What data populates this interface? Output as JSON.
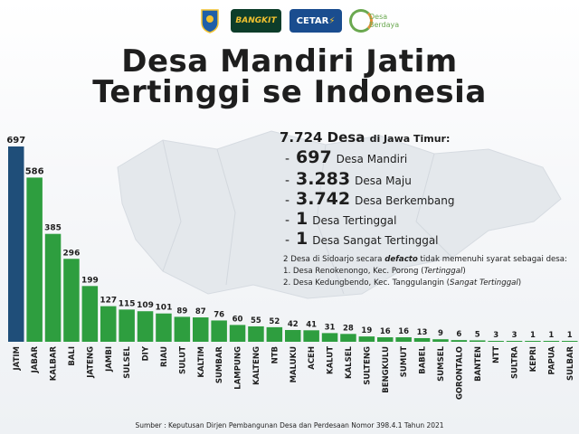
{
  "header": {
    "logos": [
      {
        "name": "jatim-crest-logo",
        "text": ""
      },
      {
        "name": "bangkit-logo",
        "text": "BANGKIT"
      },
      {
        "name": "cetar-logo",
        "text": "CETAR"
      },
      {
        "name": "desa-berdaya-logo",
        "text": "Desa Berdaya"
      }
    ],
    "title_line1": "Desa Mandiri Jatim",
    "title_line2": "Tertinggi se Indonesia"
  },
  "summary": {
    "total": "7.724 Desa",
    "total_suffix": "di Jawa Timur:",
    "items": [
      {
        "value": "697",
        "label": "Desa Mandiri"
      },
      {
        "value": "3.283",
        "label": "Desa Maju"
      },
      {
        "value": "3.742",
        "label": "Desa Berkembang"
      },
      {
        "value": "1",
        "label": "Desa Tertinggal"
      },
      {
        "value": "1",
        "label": "Desa Sangat Tertinggal"
      }
    ]
  },
  "note": {
    "intro_pre": "2 Desa di Sidoarjo secara ",
    "intro_bold": "defacto",
    "intro_post": " tidak memenuhi syarat sebagai desa:",
    "line1_pre": "1.  Desa Renokenongo, Kec. Porong (",
    "line1_em": "Tertinggal",
    "line1_post": ")",
    "line2_pre": "2.  Desa Kedungbendo, Kec. Tanggulangin (",
    "line2_em": "Sangat Tertinggal",
    "line2_post": ")"
  },
  "source": "Sumber : Keputusan Dirjen Pembangunan Desa dan Perdesaan Nomor 398.4.1 Tahun 2021",
  "colors": {
    "highlight_bar": "#1f4e79",
    "bar": "#2e9e3f",
    "bar_dark": "#23863a"
  },
  "chart_data": {
    "type": "bar",
    "title": "Desa Mandiri Jatim Tertinggi se Indonesia",
    "xlabel": "",
    "ylabel": "",
    "categories": [
      "JATIM",
      "JABAR",
      "KALBAR",
      "BALI",
      "JATENG",
      "JAMBI",
      "SULSEL",
      "DIY",
      "RIAU",
      "SULUT",
      "KALTIM",
      "SUMBAR",
      "LAMPUNG",
      "KALTENG",
      "NTB",
      "MALUKU",
      "ACEH",
      "KALUT",
      "KALSEL",
      "SULTENG",
      "BENGKULU",
      "SUMUT",
      "BABEL",
      "SUMSEL",
      "GORONTALO",
      "BANTEN",
      "NTT",
      "SULTRA",
      "KEPRI",
      "PAPUA",
      "SULBAR"
    ],
    "values": [
      697,
      586,
      385,
      296,
      199,
      127,
      115,
      109,
      101,
      89,
      87,
      76,
      60,
      55,
      52,
      42,
      41,
      31,
      28,
      19,
      16,
      16,
      13,
      9,
      6,
      5,
      3,
      3,
      1,
      1,
      1
    ],
    "value_labels": [
      "697",
      "586",
      "385",
      "296",
      "199",
      "127",
      "115",
      "109",
      "101",
      "89",
      "87",
      "76",
      "60",
      "55",
      "52",
      "42",
      "41",
      "31",
      "28",
      "19",
      "16",
      "16",
      "13",
      "9",
      "6",
      "5",
      "3",
      "3",
      "1",
      "1",
      "1"
    ],
    "highlight": "JATIM",
    "grid": false,
    "legend": "none"
  }
}
